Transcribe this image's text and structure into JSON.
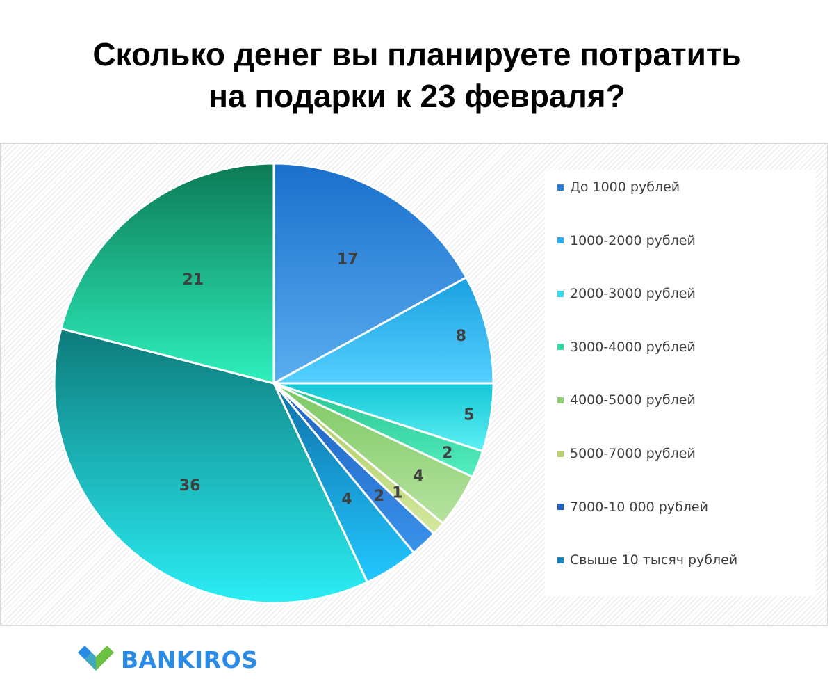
{
  "title": {
    "line1": "Сколько денег вы планируете потратить",
    "line2": "на подарки к 23 февраля?"
  },
  "brand": {
    "name": "BANKIROS",
    "logo_icon": "checkmark-logo-icon",
    "colors": {
      "blue": "#2a8be6",
      "green": "#6cc142"
    }
  },
  "chart_data": {
    "type": "pie",
    "title": "Сколько денег вы планируете потратить на подарки к 23 февраля?",
    "legend_position": "right",
    "categories": [
      "До 1000 рублей",
      "1000-2000 рублей",
      "2000-3000 рублей",
      "3000-4000 рублей",
      "4000-5000 рублей",
      "5000-7000 рублей",
      "7000-10 000 рублей",
      "Свыше 10 тысяч рублей"
    ],
    "values": [
      17,
      8,
      5,
      2,
      4,
      1,
      2,
      4
    ],
    "extra_unlabeled_in_legend": [
      {
        "values": [
          36,
          21
        ]
      }
    ],
    "slices": [
      {
        "label": "До 1000 рублей",
        "value": 17,
        "color_top": "#1a6fcc",
        "color_bottom": "#5aaeef"
      },
      {
        "label": "1000-2000 рублей",
        "value": 8,
        "color_top": "#1aa0e0",
        "color_bottom": "#55d0ff"
      },
      {
        "label": "2000-3000 рублей",
        "value": 5,
        "color_top": "#14c6d6",
        "color_bottom": "#5ef0f5"
      },
      {
        "label": "3000-4000 рублей",
        "value": 2,
        "color_top": "#28c48f",
        "color_bottom": "#55eec0"
      },
      {
        "label": "4000-5000 рублей",
        "value": 4,
        "color_top": "#7cc862",
        "color_bottom": "#b6e3a0"
      },
      {
        "label": "5000-7000 рублей",
        "value": 1,
        "color_top": "#a8c85a",
        "color_bottom": "#d4e8a0"
      },
      {
        "label": "7000-10 000 рублей",
        "value": 2,
        "color_top": "#1e5fc0",
        "color_bottom": "#3a93ea"
      },
      {
        "label": "Свыше 10 тысяч рублей",
        "value": 4,
        "color_top": "#0f6fa8",
        "color_bottom": "#22c8ff"
      },
      {
        "label": "",
        "value": 36,
        "color_top": "#0d7a7a",
        "color_bottom": "#2beef5"
      },
      {
        "label": "",
        "value": 21,
        "color_top": "#0c7a55",
        "color_bottom": "#2ef0bd"
      }
    ],
    "legend_swatch_colors": [
      "#2a7fd8",
      "#2aaef0",
      "#3ad8ec",
      "#30d6a0",
      "#90cf70",
      "#b8d070",
      "#1e5fc0",
      "#1684c0"
    ]
  }
}
